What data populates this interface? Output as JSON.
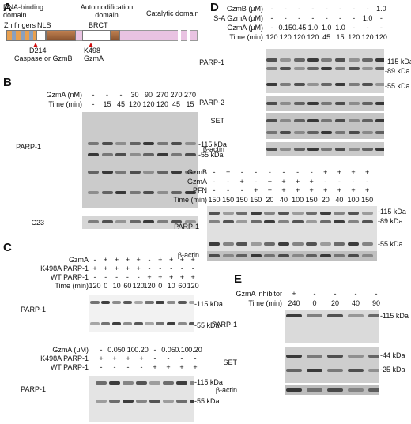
{
  "panels": [
    {
      "letter": "A",
      "texts": [
        "DNA-binding domain",
        "Zn fingers",
        "NLS",
        "Automodification domain",
        "BRCT",
        "Catalytic domain",
        "D214",
        "Caspase or GzmB",
        "K498",
        "GzmA"
      ]
    },
    {
      "letter": "B",
      "sections": [
        {
          "rows": [
            {
              "label": "GzmA (nM)",
              "values": [
                "-",
                "-",
                "-",
                "30",
                "90",
                "270",
                "270",
                "270"
              ]
            },
            {
              "label": "Time (min)",
              "values": [
                "-",
                "15",
                "45",
                "120",
                "120",
                "120",
                "45",
                "15"
              ]
            }
          ],
          "blots": [
            {
              "label": "PARP-1",
              "markers": [
                "-115 kDa",
                "-55 kDa"
              ]
            },
            {
              "label": "C23",
              "markers": []
            }
          ]
        }
      ]
    },
    {
      "letter": "C",
      "sections": [
        {
          "rows": [
            {
              "label": "GzmA",
              "values": [
                "-",
                "+",
                "+",
                "+",
                "+",
                "-",
                "+",
                "+",
                "+",
                "+"
              ]
            },
            {
              "label": "K498A PARP-1",
              "values": [
                "+",
                "+",
                "+",
                "+",
                "+",
                "-",
                "-",
                "-",
                "-",
                "-"
              ]
            },
            {
              "label": "WT PARP-1",
              "values": [
                "-",
                "-",
                "-",
                "-",
                "-",
                "+",
                "+",
                "+",
                "+",
                "+"
              ]
            },
            {
              "label": "Time (min)",
              "values": [
                "120",
                "0",
                "10",
                "60",
                "120",
                "120",
                "0",
                "10",
                "60",
                "120"
              ]
            }
          ],
          "blots": [
            {
              "label": "PARP-1",
              "markers": [
                "-115 kDa",
                "-55 kDa"
              ]
            }
          ]
        },
        {
          "rows": [
            {
              "label": "GzmA (μM)",
              "values": [
                "-",
                "0.05",
                "0.10",
                "0.20",
                "-",
                "0.05",
                "0.10",
                "0.20"
              ]
            },
            {
              "label": "K498A PARP-1",
              "values": [
                "+",
                "+",
                "+",
                "+",
                "-",
                "-",
                "-",
                "-"
              ]
            },
            {
              "label": "WT PARP-1",
              "values": [
                "-",
                "-",
                "-",
                "-",
                "+",
                "+",
                "+",
                "+"
              ]
            }
          ],
          "blots": [
            {
              "label": "PARP-1",
              "markers": [
                "-115 kDa",
                "-55 kDa"
              ]
            }
          ]
        }
      ]
    },
    {
      "letter": "D",
      "sections": [
        {
          "rows": [
            {
              "label": "GzmB (μM)",
              "values": [
                "-",
                "-",
                "-",
                "-",
                "-",
                "-",
                "-",
                "-",
                "1.0"
              ]
            },
            {
              "label": "S-A GzmA (μM)",
              "values": [
                "-",
                "-",
                "-",
                "-",
                "-",
                "-",
                "-",
                "1.0",
                "-"
              ]
            },
            {
              "label": "GzmA (μM)",
              "values": [
                "-",
                "0.15",
                "0.45",
                "1.0",
                "1.0",
                "1.0",
                "-",
                "-",
                "-"
              ]
            },
            {
              "label": "Time (min)",
              "values": [
                "120",
                "120",
                "120",
                "120",
                "45",
                "15",
                "120",
                "120",
                "120"
              ]
            }
          ],
          "blots": [
            {
              "label": "PARP-1",
              "markers": [
                "-115 kDa",
                "-89 kDa",
                "-55 kDa"
              ]
            },
            {
              "label": "PARP-2",
              "markers": []
            },
            {
              "label": "SET",
              "markers": []
            },
            {
              "label": "β-actin",
              "markers": []
            }
          ]
        },
        {
          "rows": [
            {
              "label": "GzmB",
              "values": [
                "-",
                "+",
                "-",
                "-",
                "-",
                "-",
                "-",
                "-",
                "+",
                "+",
                "+",
                "+"
              ]
            },
            {
              "label": "GzmA",
              "values": [
                "-",
                "-",
                "+",
                "-",
                "+",
                "+",
                "+",
                "+",
                "-",
                "-",
                "-",
                "-"
              ]
            },
            {
              "label": "PFN",
              "values": [
                "-",
                "-",
                "-",
                "+",
                "+",
                "+",
                "+",
                "+",
                "+",
                "+",
                "+",
                "+"
              ]
            },
            {
              "label": "Time (min)",
              "values": [
                "150",
                "150",
                "150",
                "150",
                "20",
                "40",
                "100",
                "150",
                "20",
                "40",
                "100",
                "150"
              ]
            }
          ],
          "blots": [
            {
              "label": "PARP-1",
              "markers": [
                "-115 kDa",
                "-89 kDa",
                "-55 kDa"
              ]
            },
            {
              "label": "β-actin",
              "markers": []
            }
          ]
        }
      ]
    },
    {
      "letter": "E",
      "sections": [
        {
          "rows": [
            {
              "label": "GzmA inhibitor",
              "values": [
                "+",
                "-",
                "-",
                "-",
                "-"
              ]
            },
            {
              "label": "Time (min)",
              "values": [
                "240",
                "0",
                "20",
                "40",
                "90"
              ]
            }
          ],
          "blots": [
            {
              "label": "PARP-1",
              "markers": [
                "-115 kDa"
              ]
            },
            {
              "label": "SET",
              "markers": [
                "-44 kDa",
                "-25 kDa"
              ]
            },
            {
              "label": "β-actin",
              "markers": []
            }
          ]
        }
      ]
    }
  ]
}
